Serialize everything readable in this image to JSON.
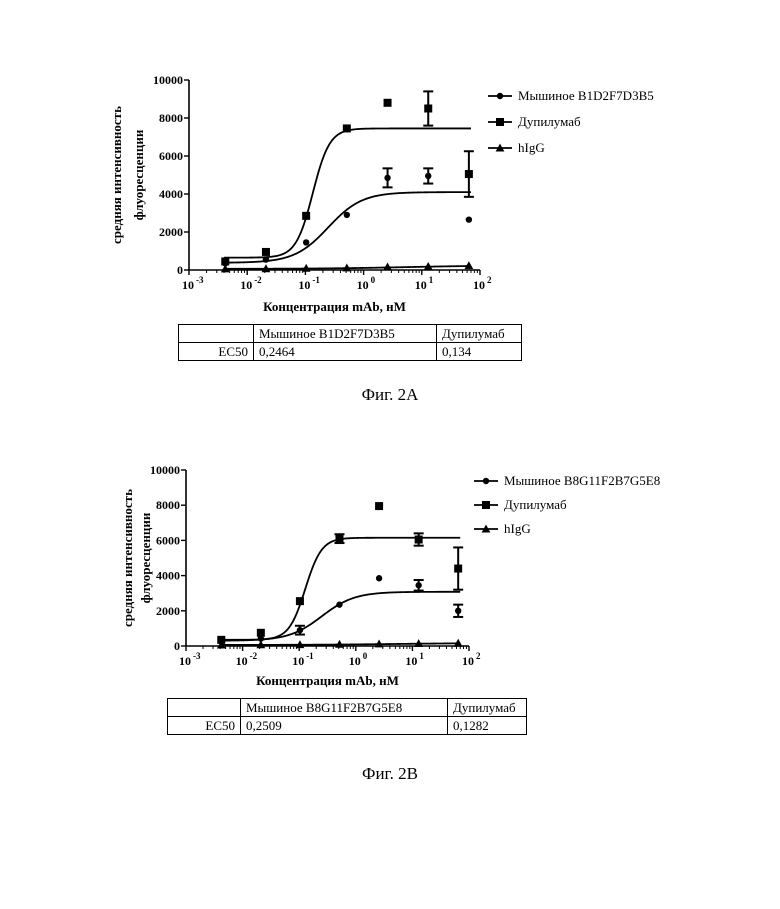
{
  "figures": [
    {
      "caption": "Фиг. 2A",
      "table": {
        "header": [
          "",
          "Мышиное B1D2F7D3B5",
          "Дупилумаб"
        ],
        "row": [
          "EC50",
          "0,2464",
          "0,134"
        ]
      },
      "chart_data": {
        "type": "scatter",
        "xlabel": "Концентрация mAb, нМ",
        "ylabel": "средняя интенсивность флуоресценции",
        "x_scale": "log",
        "xlim": [
          0.001,
          100
        ],
        "ylim": [
          0,
          10000
        ],
        "x_ticks": [
          0.001,
          0.01,
          0.1,
          1,
          10,
          100
        ],
        "x_tick_labels": [
          [
            "10",
            "-3"
          ],
          [
            "10",
            "-2"
          ],
          [
            "10",
            "-1"
          ],
          [
            "10",
            "0"
          ],
          [
            "10",
            "1"
          ],
          [
            "10",
            "2"
          ]
        ],
        "y_ticks": [
          0,
          2000,
          4000,
          6000,
          8000,
          10000
        ],
        "legend_position": "right",
        "series": [
          {
            "name": "Мышиное B1D2F7D3B5",
            "marker": "circle",
            "points": [
              {
                "x": 0.0042,
                "y": 350
              },
              {
                "x": 0.021,
                "y": 550
              },
              {
                "x": 0.103,
                "y": 1450
              },
              {
                "x": 0.515,
                "y": 2900
              },
              {
                "x": 2.58,
                "y": 4850,
                "err": 500
              },
              {
                "x": 12.9,
                "y": 4950,
                "err": 400
              },
              {
                "x": 64.4,
                "y": 2650
              }
            ],
            "fit": {
              "bottom": 380,
              "top": 4100,
              "ec50": 0.2464,
              "hill": 1.5
            }
          },
          {
            "name": "Дупилумаб",
            "marker": "square",
            "points": [
              {
                "x": 0.0042,
                "y": 450
              },
              {
                "x": 0.021,
                "y": 950
              },
              {
                "x": 0.103,
                "y": 2850
              },
              {
                "x": 0.515,
                "y": 7450
              },
              {
                "x": 2.58,
                "y": 8800
              },
              {
                "x": 12.9,
                "y": 8500,
                "err": 900
              },
              {
                "x": 64.4,
                "y": 5050,
                "err": 1200
              }
            ],
            "fit": {
              "bottom": 650,
              "top": 7450,
              "ec50": 0.134,
              "hill": 3.0
            }
          },
          {
            "name": "hIgG",
            "marker": "triangle",
            "points": [
              {
                "x": 0.0042,
                "y": 60
              },
              {
                "x": 0.021,
                "y": 70
              },
              {
                "x": 0.103,
                "y": 90
              },
              {
                "x": 0.515,
                "y": 110
              },
              {
                "x": 2.58,
                "y": 160
              },
              {
                "x": 12.9,
                "y": 190
              },
              {
                "x": 64.4,
                "y": 230
              }
            ],
            "fit": {
              "bottom": 60,
              "top": 240,
              "ec50": 5.0,
              "hill": 0.6
            }
          }
        ]
      }
    },
    {
      "caption": "Фиг. 2B",
      "table": {
        "header": [
          "",
          "Мышиное B8G11F2B7G5E8",
          "Дупилумаб"
        ],
        "row": [
          "EC50",
          "0,2509",
          "0,1282"
        ]
      },
      "chart_data": {
        "type": "scatter",
        "xlabel": "Концентрация mAb, нМ",
        "ylabel": "средняя интенсивность флуоресценции",
        "x_scale": "log",
        "xlim": [
          0.001,
          100
        ],
        "ylim": [
          0,
          10000
        ],
        "x_ticks": [
          0.001,
          0.01,
          0.1,
          1,
          10,
          100
        ],
        "x_tick_labels": [
          [
            "10",
            "-3"
          ],
          [
            "10",
            "-2"
          ],
          [
            "10",
            "-1"
          ],
          [
            "10",
            "0"
          ],
          [
            "10",
            "1"
          ],
          [
            "10",
            "2"
          ]
        ],
        "y_ticks": [
          0,
          2000,
          4000,
          6000,
          8000,
          10000
        ],
        "legend_position": "right",
        "series": [
          {
            "name": "Мышиное B8G11F2B7G5E8",
            "marker": "circle",
            "points": [
              {
                "x": 0.0042,
                "y": 250
              },
              {
                "x": 0.021,
                "y": 420
              },
              {
                "x": 0.103,
                "y": 900,
                "err": 250
              },
              {
                "x": 0.515,
                "y": 2350
              },
              {
                "x": 2.58,
                "y": 3850
              },
              {
                "x": 12.9,
                "y": 3450,
                "err": 300
              },
              {
                "x": 64.4,
                "y": 2000,
                "err": 350
              }
            ],
            "fit": {
              "bottom": 300,
              "top": 3080,
              "ec50": 0.2509,
              "hill": 1.5
            }
          },
          {
            "name": "Дупилумаб",
            "marker": "square",
            "points": [
              {
                "x": 0.0042,
                "y": 350
              },
              {
                "x": 0.021,
                "y": 750
              },
              {
                "x": 0.103,
                "y": 2550
              },
              {
                "x": 0.515,
                "y": 6100,
                "err": 250
              },
              {
                "x": 2.58,
                "y": 7950
              },
              {
                "x": 12.9,
                "y": 6050,
                "err": 350
              },
              {
                "x": 64.4,
                "y": 4400,
                "err": 1200
              }
            ],
            "fit": {
              "bottom": 350,
              "top": 6150,
              "ec50": 0.1282,
              "hill": 3.0
            }
          },
          {
            "name": "hIgG",
            "marker": "triangle",
            "points": [
              {
                "x": 0.0042,
                "y": 60
              },
              {
                "x": 0.021,
                "y": 70
              },
              {
                "x": 0.103,
                "y": 80
              },
              {
                "x": 0.515,
                "y": 100
              },
              {
                "x": 2.58,
                "y": 120
              },
              {
                "x": 12.9,
                "y": 140
              },
              {
                "x": 64.4,
                "y": 160
              }
            ],
            "fit": {
              "bottom": 60,
              "top": 170,
              "ec50": 5.0,
              "hill": 0.6
            }
          }
        ]
      }
    }
  ]
}
